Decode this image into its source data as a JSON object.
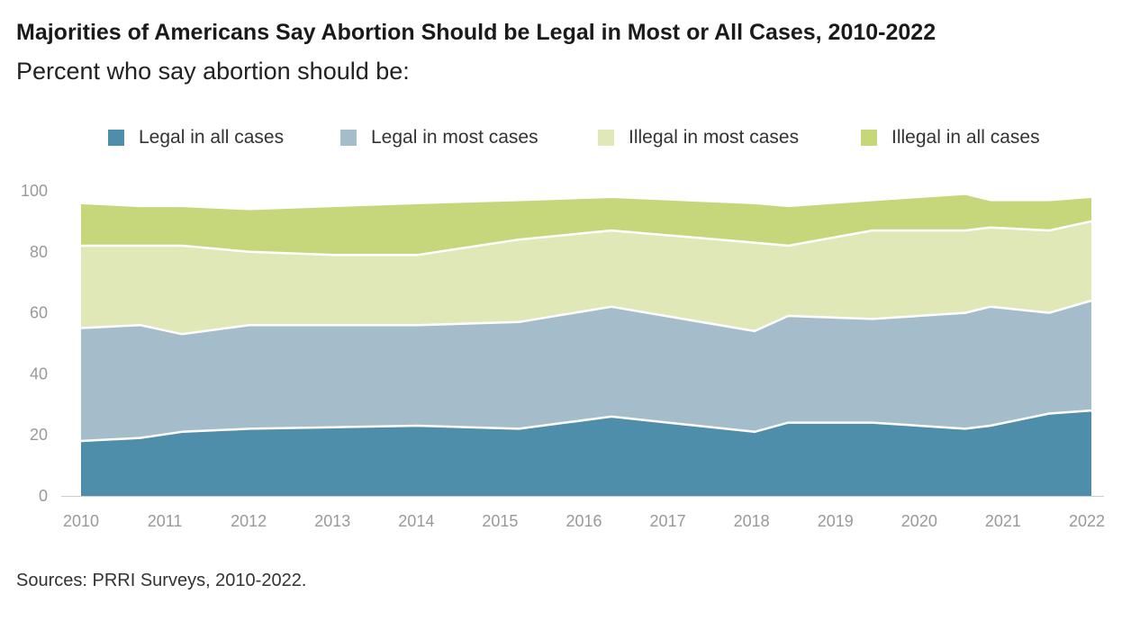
{
  "title": "Majorities of Americans Say Abortion Should be Legal in Most or All Cases, 2010-2022",
  "subtitle": "Percent who say abortion should be:",
  "source": "Sources: PRRI Surveys, 2010-2022.",
  "chart_data": {
    "type": "area",
    "stacked": true,
    "x": [
      2010,
      2010.7,
      2011.2,
      2012,
      2013,
      2014,
      2015.2,
      2016.3,
      2018,
      2018.4,
      2019.4,
      2020.5,
      2020.8,
      2021.5,
      2022
    ],
    "x_ticks": [
      "2010",
      "2011",
      "2012",
      "2013",
      "2014",
      "2015",
      "2016",
      "2017",
      "2018",
      "2019",
      "2020",
      "2021",
      "2022"
    ],
    "ylim": [
      0,
      100
    ],
    "y_ticks": [
      "0",
      "20",
      "40",
      "60",
      "80",
      "100"
    ],
    "legend_position": "top",
    "grid": false,
    "series": [
      {
        "name": "Legal in all cases",
        "color": "#4e8eab",
        "values": [
          18,
          19,
          21,
          22,
          22.5,
          23,
          22,
          26,
          21,
          24,
          24,
          22,
          23,
          27,
          28
        ]
      },
      {
        "name": "Legal in most cases",
        "color": "#a5bdcb",
        "values": [
          37,
          37,
          32,
          34,
          33.5,
          33,
          35,
          36,
          33,
          35,
          34,
          38,
          39,
          33,
          36
        ]
      },
      {
        "name": "Illegal in most cases",
        "color": "#e0e8b8",
        "values": [
          27,
          26,
          29,
          24,
          23,
          23,
          27,
          25,
          29,
          23,
          29,
          27,
          26,
          27,
          26
        ]
      },
      {
        "name": "Illegal in all cases",
        "color": "#c5d77a",
        "values": [
          14,
          13,
          13,
          14,
          16,
          17,
          13,
          11,
          13,
          13,
          10,
          12,
          9,
          10,
          8
        ]
      }
    ]
  }
}
